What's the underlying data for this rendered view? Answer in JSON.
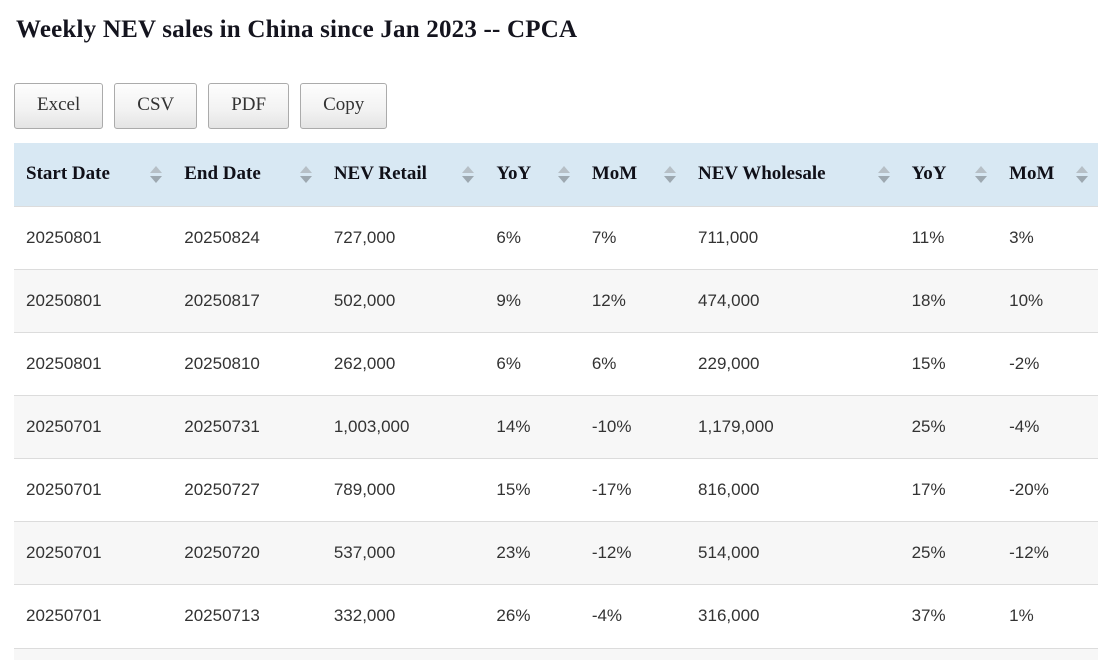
{
  "page": {
    "title": "Weekly NEV sales in China since Jan 2023 -- CPCA"
  },
  "toolbar": {
    "buttons": [
      {
        "label": "Excel"
      },
      {
        "label": "CSV"
      },
      {
        "label": "PDF"
      },
      {
        "label": "Copy"
      }
    ]
  },
  "icons": {
    "sort": "up-down-triangles"
  },
  "colors": {
    "header_bg": "#d8e8f3",
    "stripe_bg": "#f7f7f7",
    "row_border": "#dcdcdc",
    "title_color": "#14141e"
  },
  "table": {
    "columns": [
      "Start Date",
      "End Date",
      "NEV Retail",
      "YoY",
      "MoM",
      "NEV Wholesale",
      "YoY",
      "MoM"
    ],
    "rows": [
      [
        "20250801",
        "20250824",
        "727,000",
        "6%",
        "7%",
        "711,000",
        "11%",
        "3%"
      ],
      [
        "20250801",
        "20250817",
        "502,000",
        "9%",
        "12%",
        "474,000",
        "18%",
        "10%"
      ],
      [
        "20250801",
        "20250810",
        "262,000",
        "6%",
        "6%",
        "229,000",
        "15%",
        "-2%"
      ],
      [
        "20250701",
        "20250731",
        "1,003,000",
        "14%",
        "-10%",
        "1,179,000",
        "25%",
        "-4%"
      ],
      [
        "20250701",
        "20250727",
        "789,000",
        "15%",
        "-17%",
        "816,000",
        "17%",
        "-20%"
      ],
      [
        "20250701",
        "20250720",
        "537,000",
        "23%",
        "-12%",
        "514,000",
        "25%",
        "-12%"
      ],
      [
        "20250701",
        "20250713",
        "332,000",
        "26%",
        "-4%",
        "316,000",
        "37%",
        "1%"
      ]
    ]
  }
}
